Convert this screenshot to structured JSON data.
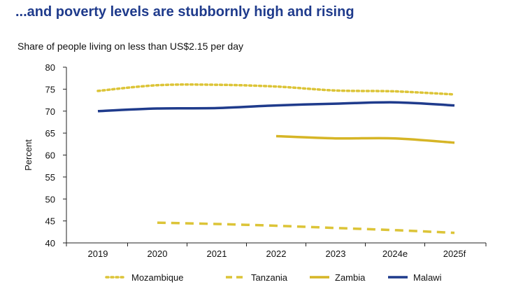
{
  "title": "...and poverty levels are stubbornly high and rising",
  "subtitle": "Share of people living on less than US$2.15 per day",
  "colors": {
    "title": "#1f3b8c",
    "gold": "#d6b526",
    "gold_light": "#dcc437",
    "navy": "#1f3b8c",
    "axis": "#222222"
  },
  "chart_data": {
    "type": "line",
    "title": "...and poverty levels are stubbornly high and rising",
    "subtitle": "Share of people living on less than US$2.15 per day",
    "xlabel": "",
    "ylabel": "Percent",
    "categories": [
      "2019",
      "2020",
      "2021",
      "2022",
      "2023",
      "2024e",
      "2025f"
    ],
    "ylim": [
      40,
      80
    ],
    "yticks": [
      40,
      45,
      50,
      55,
      60,
      65,
      70,
      75,
      80
    ],
    "grid": false,
    "legend_position": "bottom",
    "series": [
      {
        "name": "Mozambique",
        "style": "dotted",
        "color": "#dcc437",
        "values": [
          74.6,
          75.9,
          76.0,
          75.6,
          74.7,
          74.5,
          73.8
        ]
      },
      {
        "name": "Tanzania",
        "style": "dashed",
        "color": "#dcc437",
        "values": [
          null,
          44.6,
          44.3,
          43.9,
          43.4,
          42.9,
          42.3
        ]
      },
      {
        "name": "Zambia",
        "style": "solid",
        "color": "#d6b526",
        "values": [
          null,
          null,
          null,
          64.3,
          63.8,
          63.8,
          62.8
        ]
      },
      {
        "name": "Malawi",
        "style": "solid",
        "color": "#1f3b8c",
        "values": [
          70.0,
          70.6,
          70.7,
          71.3,
          71.7,
          72.0,
          71.3
        ]
      }
    ]
  }
}
